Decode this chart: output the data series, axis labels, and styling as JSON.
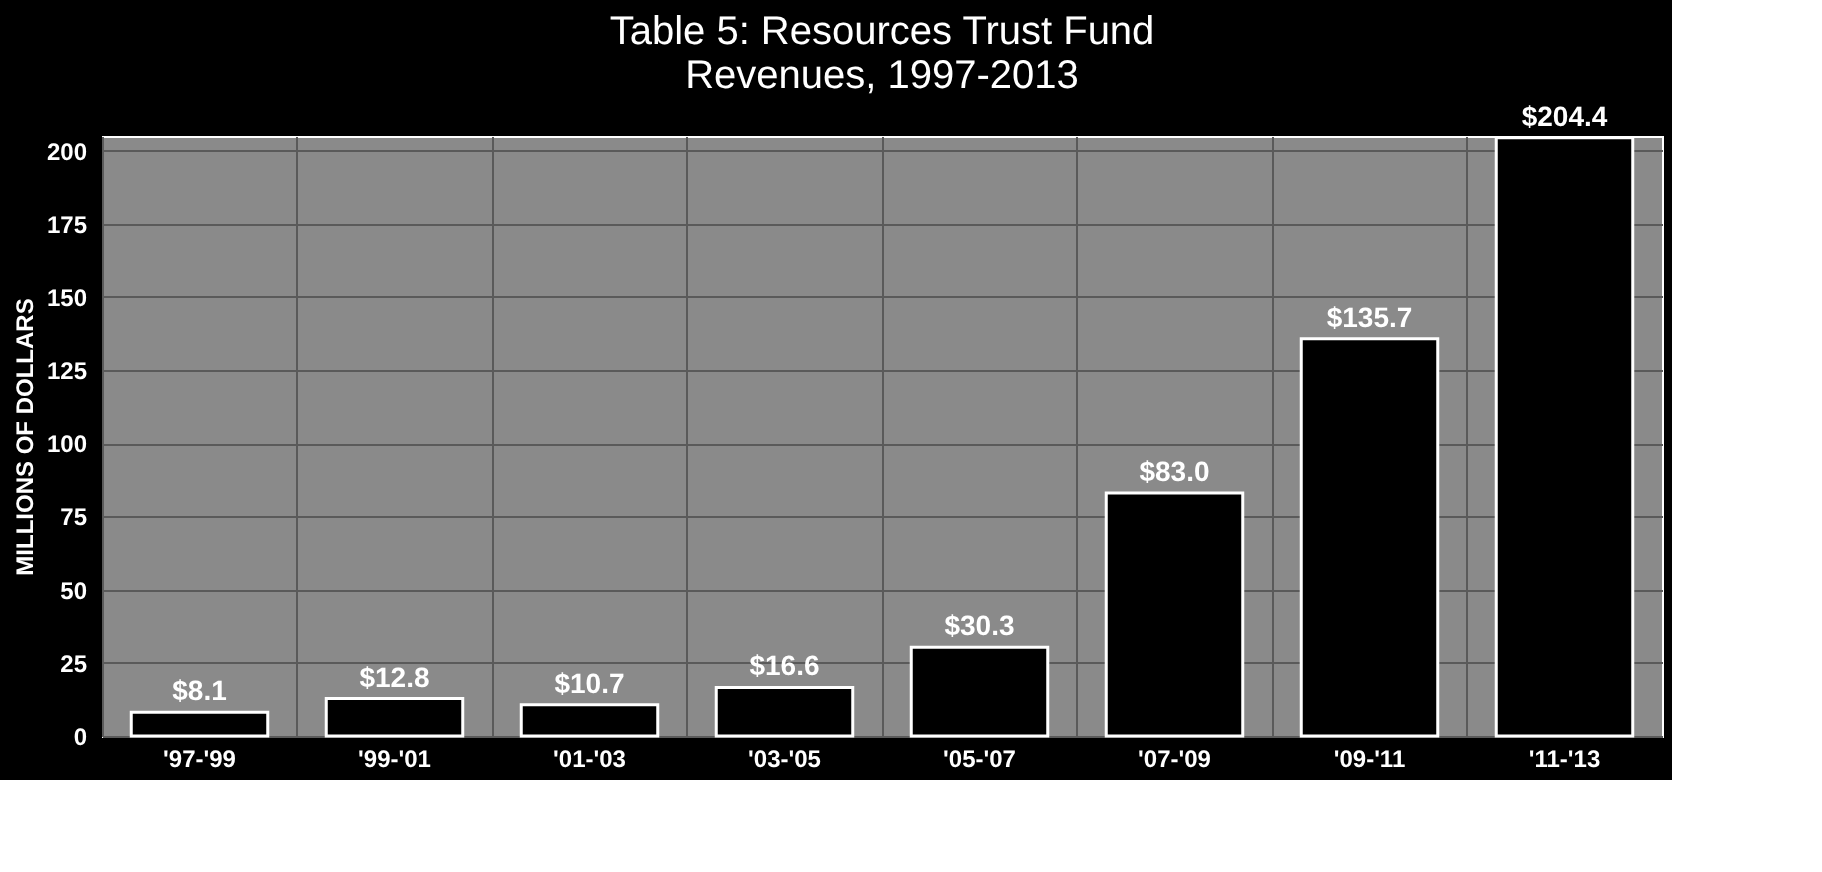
{
  "chart_data": {
    "type": "bar",
    "title": [
      "Table 5: Resources Trust Fund",
      "Revenues, 1997-2013"
    ],
    "ylabel": "MILLIONS OF DOLLARS",
    "categories": [
      "'97-'99",
      "'99-'01",
      "'01-'03",
      "'03-'05",
      "'05-'07",
      "'07-'09",
      "'09-'11",
      "'11-'13"
    ],
    "values": [
      8.1,
      12.8,
      10.7,
      16.6,
      30.3,
      83.0,
      135.7,
      204.4
    ],
    "value_labels": [
      "$8.1",
      "$12.8",
      "$10.7",
      "$16.6",
      "$30.3",
      "$83.0",
      "$135.7",
      "$204.4"
    ],
    "color": "#000000",
    "ylim": [
      0,
      205
    ],
    "yticks": [
      0,
      25,
      50,
      75,
      100,
      125,
      150,
      175,
      200
    ],
    "grid": true
  }
}
